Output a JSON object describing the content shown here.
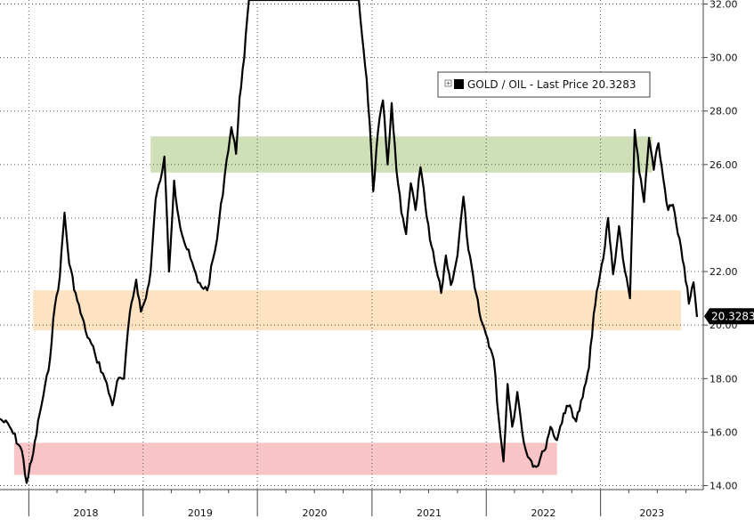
{
  "chart_data": {
    "type": "line",
    "title": "",
    "xlabel": "",
    "ylabel": "",
    "ylim": [
      13.85,
      32.15
    ],
    "xlim": [
      "2017-10-01",
      "2023-11-25"
    ],
    "grid": true,
    "y_ticks": [
      "32.00",
      "30.00",
      "28.00",
      "26.00",
      "24.00",
      "22.00",
      "20.00",
      "18.00",
      "16.00",
      "14.00"
    ],
    "x_tick_labels": [
      "2018",
      "2019",
      "2020",
      "2021",
      "2022",
      "2023"
    ],
    "legend": {
      "position": "top-right",
      "entry": "GOLD / OIL - Last Price 20.3283",
      "color": "#000000"
    },
    "last_price": "20.3283",
    "bands": [
      {
        "name": "green",
        "x_start": "2019-01-25",
        "x_end": "2023-06-15",
        "y_low": 25.7,
        "y_high": 27.05,
        "color": "#cfe0b8"
      },
      {
        "name": "orange",
        "x_start": "2018-01-15",
        "x_end": "2023-09-15",
        "y_low": 19.8,
        "y_high": 21.3,
        "color": "#fde3c2"
      },
      {
        "name": "red",
        "x_start": "2017-11-15",
        "x_end": "2022-08-15",
        "y_low": 14.4,
        "y_high": 15.6,
        "color": "#f9c4c6"
      }
    ],
    "series": [
      {
        "color": "#000000",
        "points": [
          [
            "2017-10-01",
            16.5
          ],
          [
            "2017-11-01",
            16.2
          ],
          [
            "2017-12-10",
            15.3
          ],
          [
            "2017-12-25",
            14.1
          ],
          [
            "2018-01-15",
            15.2
          ],
          [
            "2018-02-05",
            16.7
          ],
          [
            "2018-03-05",
            18.3
          ],
          [
            "2018-03-25",
            20.7
          ],
          [
            "2018-04-10",
            21.8
          ],
          [
            "2018-04-25",
            24.2
          ],
          [
            "2018-05-10",
            22.3
          ],
          [
            "2018-06-05",
            20.9
          ],
          [
            "2018-07-01",
            19.8
          ],
          [
            "2018-08-01",
            18.9
          ],
          [
            "2018-09-01",
            18.0
          ],
          [
            "2018-09-25",
            17.0
          ],
          [
            "2018-10-10",
            17.9
          ],
          [
            "2018-11-01",
            18.0
          ],
          [
            "2018-11-20",
            20.5
          ],
          [
            "2018-12-10",
            21.7
          ],
          [
            "2018-12-25",
            20.5
          ],
          [
            "2019-01-10",
            21.0
          ],
          [
            "2019-01-25",
            22.0
          ],
          [
            "2019-02-10",
            24.7
          ],
          [
            "2019-02-25",
            25.4
          ],
          [
            "2019-03-10",
            26.3
          ],
          [
            "2019-03-25",
            22.0
          ],
          [
            "2019-04-10",
            25.4
          ],
          [
            "2019-04-25",
            24.0
          ],
          [
            "2019-05-10",
            23.2
          ],
          [
            "2019-06-01",
            22.5
          ],
          [
            "2019-06-25",
            21.6
          ],
          [
            "2019-07-25",
            21.3
          ],
          [
            "2019-08-25",
            23.2
          ],
          [
            "2019-09-25",
            26.2
          ],
          [
            "2019-10-10",
            27.4
          ],
          [
            "2019-10-25",
            26.4
          ],
          [
            "2019-11-05",
            28.5
          ],
          [
            "2019-11-20",
            30.0
          ],
          [
            "2019-12-05",
            32.15
          ],
          [
            "2020-11-20",
            32.15
          ],
          [
            "2020-12-05",
            30.3
          ],
          [
            "2020-12-15",
            29.2
          ],
          [
            "2020-12-25",
            27.5
          ],
          [
            "2021-01-05",
            25.0
          ],
          [
            "2021-01-20",
            27.2
          ],
          [
            "2021-02-05",
            28.4
          ],
          [
            "2021-02-20",
            26.0
          ],
          [
            "2021-03-05",
            28.3
          ],
          [
            "2021-03-20",
            25.8
          ],
          [
            "2021-04-05",
            24.2
          ],
          [
            "2021-04-20",
            23.4
          ],
          [
            "2021-05-05",
            25.3
          ],
          [
            "2021-05-20",
            24.3
          ],
          [
            "2021-06-05",
            25.9
          ],
          [
            "2021-06-20",
            24.5
          ],
          [
            "2021-07-05",
            23.2
          ],
          [
            "2021-07-25",
            22.1
          ],
          [
            "2021-08-10",
            21.2
          ],
          [
            "2021-08-25",
            22.6
          ],
          [
            "2021-09-10",
            21.5
          ],
          [
            "2021-10-01",
            22.6
          ],
          [
            "2021-10-20",
            24.8
          ],
          [
            "2021-11-05",
            22.8
          ],
          [
            "2021-11-25",
            21.4
          ],
          [
            "2021-12-15",
            20.2
          ],
          [
            "2022-01-05",
            19.5
          ],
          [
            "2022-01-25",
            18.7
          ],
          [
            "2022-02-10",
            16.5
          ],
          [
            "2022-02-25",
            14.9
          ],
          [
            "2022-03-10",
            17.8
          ],
          [
            "2022-03-25",
            16.2
          ],
          [
            "2022-04-10",
            17.5
          ],
          [
            "2022-05-01",
            15.6
          ],
          [
            "2022-05-20",
            15.0
          ],
          [
            "2022-06-10",
            14.7
          ],
          [
            "2022-07-05",
            15.3
          ],
          [
            "2022-07-25",
            16.2
          ],
          [
            "2022-08-15",
            15.7
          ],
          [
            "2022-09-05",
            16.7
          ],
          [
            "2022-09-25",
            17.0
          ],
          [
            "2022-10-15",
            16.4
          ],
          [
            "2022-11-05",
            17.3
          ],
          [
            "2022-11-25",
            18.4
          ],
          [
            "2022-12-10",
            20.4
          ],
          [
            "2022-12-25",
            21.5
          ],
          [
            "2023-01-10",
            22.5
          ],
          [
            "2023-01-25",
            24.0
          ],
          [
            "2023-02-10",
            21.9
          ],
          [
            "2023-03-01",
            23.7
          ],
          [
            "2023-03-20",
            22.0
          ],
          [
            "2023-04-05",
            21.0
          ],
          [
            "2023-04-20",
            27.3
          ],
          [
            "2023-05-05",
            25.7
          ],
          [
            "2023-05-20",
            24.6
          ],
          [
            "2023-06-05",
            27.0
          ],
          [
            "2023-06-20",
            25.8
          ],
          [
            "2023-07-05",
            26.8
          ],
          [
            "2023-07-20",
            25.5
          ],
          [
            "2023-08-05",
            24.3
          ],
          [
            "2023-08-20",
            24.5
          ],
          [
            "2023-09-05",
            23.4
          ],
          [
            "2023-09-25",
            22.2
          ],
          [
            "2023-10-10",
            20.8
          ],
          [
            "2023-10-25",
            21.6
          ],
          [
            "2023-11-05",
            20.3
          ]
        ]
      }
    ]
  }
}
